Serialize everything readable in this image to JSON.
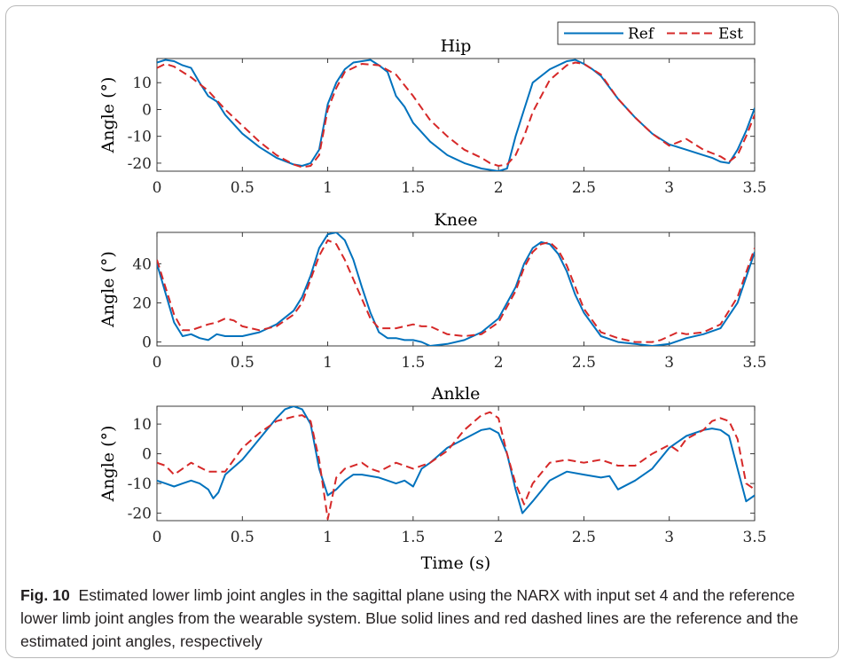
{
  "legend": [
    {
      "label": "Ref",
      "color": "#0072bd",
      "dash": "solid"
    },
    {
      "label": "Est",
      "color": "#d62828",
      "dash": "dashed"
    }
  ],
  "caption": {
    "label": "Fig. 10",
    "text": "Estimated lower limb joint angles in the sagittal plane using the NARX with input set 4 and the reference lower limb joint angles from the wearable system. Blue solid lines and red dashed lines are the reference and the estimated joint angles, respectively"
  },
  "chart_data": [
    {
      "type": "line",
      "title": "Hip",
      "xlabel": "",
      "ylabel": "Angle (°)",
      "xlim": [
        0,
        3.5
      ],
      "ylim": [
        -23,
        19
      ],
      "xticks": [
        0,
        0.5,
        1,
        1.5,
        2,
        2.5,
        3,
        3.5
      ],
      "xtick_labels": [
        "0",
        "0.5",
        "1",
        "1.5",
        "2",
        "2.5",
        "3",
        "3.5"
      ],
      "yticks": [
        -20,
        -10,
        0,
        10
      ],
      "ytick_labels": [
        "-20",
        "-10",
        "0",
        "10"
      ],
      "grid": false,
      "series": [
        {
          "name": "Ref",
          "color": "#0072bd",
          "dash": "solid",
          "x": [
            0,
            0.05,
            0.1,
            0.15,
            0.2,
            0.25,
            0.3,
            0.35,
            0.4,
            0.5,
            0.6,
            0.7,
            0.8,
            0.85,
            0.9,
            0.95,
            1.0,
            1.05,
            1.1,
            1.15,
            1.2,
            1.25,
            1.3,
            1.35,
            1.4,
            1.45,
            1.5,
            1.6,
            1.7,
            1.8,
            1.9,
            1.95,
            2.0,
            2.05,
            2.1,
            2.15,
            2.2,
            2.3,
            2.4,
            2.45,
            2.5,
            2.55,
            2.6,
            2.7,
            2.8,
            2.9,
            3.0,
            3.1,
            3.2,
            3.25,
            3.3,
            3.35,
            3.4,
            3.45,
            3.5
          ],
          "y": [
            17.5,
            18.5,
            18,
            16.5,
            15.5,
            10,
            5,
            3,
            -2,
            -9,
            -14,
            -18,
            -20.5,
            -21,
            -20,
            -15,
            2,
            10,
            15,
            17.5,
            18,
            18.5,
            16.5,
            14,
            5,
            1,
            -5,
            -12,
            -17,
            -20,
            -22,
            -22.5,
            -23,
            -22,
            -10,
            0,
            10,
            15,
            18,
            18.5,
            17,
            15,
            12.5,
            4,
            -3,
            -9,
            -13,
            -15,
            -17,
            -18,
            -19.5,
            -20,
            -15,
            -8,
            0.5
          ]
        },
        {
          "name": "Est",
          "color": "#d62828",
          "dash": "dashed",
          "x": [
            0,
            0.05,
            0.1,
            0.2,
            0.3,
            0.4,
            0.5,
            0.6,
            0.7,
            0.8,
            0.85,
            0.9,
            0.95,
            1.0,
            1.05,
            1.1,
            1.2,
            1.3,
            1.4,
            1.5,
            1.6,
            1.7,
            1.8,
            1.9,
            1.95,
            2.0,
            2.05,
            2.1,
            2.15,
            2.2,
            2.3,
            2.4,
            2.45,
            2.5,
            2.6,
            2.7,
            2.8,
            2.9,
            3.0,
            3.1,
            3.2,
            3.3,
            3.35,
            3.4,
            3.45,
            3.5
          ],
          "y": [
            15.5,
            17,
            16,
            12,
            7,
            0,
            -6,
            -12,
            -17,
            -20.5,
            -21.5,
            -21,
            -17,
            0,
            8,
            14,
            17,
            16.5,
            13,
            5,
            -4,
            -10,
            -15,
            -18,
            -20,
            -21,
            -20.5,
            -17,
            -10,
            -1,
            11,
            16.5,
            17.5,
            17,
            13,
            4,
            -3,
            -9,
            -13.5,
            -11,
            -15,
            -17.5,
            -19.5,
            -17,
            -10,
            -2
          ]
        }
      ]
    },
    {
      "type": "line",
      "title": "Knee",
      "xlabel": "",
      "ylabel": "Angle (°)",
      "xlim": [
        0,
        3.5
      ],
      "ylim": [
        -2,
        56
      ],
      "xticks": [
        0,
        0.5,
        1,
        1.5,
        2,
        2.5,
        3,
        3.5
      ],
      "xtick_labels": [
        "0",
        "0.5",
        "1",
        "1.5",
        "2",
        "2.5",
        "3",
        "3.5"
      ],
      "yticks": [
        0,
        20,
        40
      ],
      "ytick_labels": [
        "0",
        "20",
        "40"
      ],
      "grid": false,
      "series": [
        {
          "name": "Ref",
          "color": "#0072bd",
          "dash": "solid",
          "x": [
            0,
            0.05,
            0.1,
            0.15,
            0.2,
            0.25,
            0.3,
            0.35,
            0.4,
            0.5,
            0.6,
            0.7,
            0.8,
            0.85,
            0.9,
            0.95,
            1.0,
            1.05,
            1.1,
            1.15,
            1.2,
            1.25,
            1.3,
            1.35,
            1.4,
            1.45,
            1.5,
            1.55,
            1.6,
            1.7,
            1.8,
            1.9,
            2.0,
            2.1,
            2.15,
            2.2,
            2.25,
            2.3,
            2.35,
            2.4,
            2.45,
            2.5,
            2.6,
            2.7,
            2.8,
            2.9,
            3.0,
            3.1,
            3.2,
            3.3,
            3.4,
            3.5
          ],
          "y": [
            40,
            25,
            10,
            3,
            4,
            2,
            1,
            4,
            3,
            3,
            5,
            9,
            16,
            23,
            34,
            48,
            55,
            56,
            52,
            42,
            28,
            15,
            5,
            2,
            2,
            1,
            1,
            0,
            -2,
            -1,
            1,
            5,
            12,
            28,
            40,
            48,
            51,
            50,
            45,
            36,
            24,
            15,
            3,
            0,
            -1,
            -2,
            -1,
            2,
            4,
            7,
            20,
            46
          ]
        },
        {
          "name": "Est",
          "color": "#d62828",
          "dash": "dashed",
          "x": [
            0,
            0.05,
            0.1,
            0.15,
            0.2,
            0.3,
            0.35,
            0.4,
            0.45,
            0.5,
            0.6,
            0.7,
            0.8,
            0.85,
            0.9,
            0.95,
            1.0,
            1.05,
            1.1,
            1.15,
            1.2,
            1.25,
            1.3,
            1.4,
            1.5,
            1.55,
            1.6,
            1.7,
            1.8,
            1.9,
            2.0,
            2.1,
            2.15,
            2.2,
            2.25,
            2.3,
            2.35,
            2.4,
            2.45,
            2.5,
            2.6,
            2.7,
            2.8,
            2.9,
            2.95,
            3.0,
            3.05,
            3.1,
            3.2,
            3.3,
            3.4,
            3.5
          ],
          "y": [
            42,
            28,
            14,
            6,
            6,
            9,
            10,
            12,
            11,
            8,
            6,
            8,
            14,
            20,
            32,
            44,
            52,
            50,
            42,
            32,
            22,
            12,
            7,
            7,
            9,
            8,
            8,
            4,
            3,
            4,
            10,
            26,
            38,
            46,
            50,
            51,
            47,
            39,
            28,
            17,
            5,
            2,
            0,
            0,
            1,
            3,
            5,
            4,
            5,
            9,
            23,
            48
          ]
        }
      ]
    },
    {
      "type": "line",
      "title": "Ankle",
      "xlabel": "Time (s)",
      "ylabel": "Angle (°)",
      "xlim": [
        0,
        3.5
      ],
      "ylim": [
        -22.5,
        16
      ],
      "xticks": [
        0,
        0.5,
        1,
        1.5,
        2,
        2.5,
        3,
        3.5
      ],
      "xtick_labels": [
        "0",
        "0.5",
        "1",
        "1.5",
        "2",
        "2.5",
        "3",
        "3.5"
      ],
      "yticks": [
        -20,
        -10,
        0,
        10
      ],
      "ytick_labels": [
        "-20",
        "-10",
        "0",
        "10"
      ],
      "grid": false,
      "series": [
        {
          "name": "Ref",
          "color": "#0072bd",
          "dash": "solid",
          "x": [
            0,
            0.05,
            0.1,
            0.15,
            0.2,
            0.25,
            0.3,
            0.33,
            0.36,
            0.4,
            0.5,
            0.6,
            0.7,
            0.75,
            0.8,
            0.85,
            0.9,
            0.95,
            1.0,
            1.05,
            1.1,
            1.15,
            1.2,
            1.3,
            1.4,
            1.45,
            1.5,
            1.55,
            1.6,
            1.7,
            1.8,
            1.9,
            1.95,
            2.0,
            2.05,
            2.1,
            2.14,
            2.2,
            2.3,
            2.4,
            2.5,
            2.6,
            2.65,
            2.7,
            2.8,
            2.9,
            3.0,
            3.1,
            3.2,
            3.25,
            3.3,
            3.35,
            3.4,
            3.45,
            3.5
          ],
          "y": [
            -9,
            -10,
            -11,
            -10,
            -9,
            -10,
            -12,
            -15,
            -13,
            -7,
            -2,
            5,
            12,
            15,
            16,
            15,
            10,
            -5,
            -14,
            -12,
            -9,
            -7,
            -7,
            -8,
            -10,
            -9,
            -11,
            -5,
            -3,
            2,
            5,
            8,
            8.5,
            7,
            0,
            -12,
            -20,
            -16,
            -9,
            -6,
            -7,
            -8,
            -7.5,
            -12,
            -9,
            -5,
            2,
            6,
            8,
            8.5,
            8,
            6,
            -5,
            -16,
            -14
          ]
        },
        {
          "name": "Est",
          "color": "#d62828",
          "dash": "dashed",
          "x": [
            0,
            0.05,
            0.1,
            0.15,
            0.2,
            0.3,
            0.4,
            0.5,
            0.6,
            0.7,
            0.8,
            0.85,
            0.9,
            0.95,
            1.0,
            1.05,
            1.1,
            1.2,
            1.25,
            1.3,
            1.4,
            1.5,
            1.6,
            1.7,
            1.8,
            1.9,
            1.95,
            2.0,
            2.05,
            2.1,
            2.15,
            2.2,
            2.3,
            2.4,
            2.5,
            2.6,
            2.7,
            2.8,
            2.9,
            3.0,
            3.05,
            3.1,
            3.2,
            3.25,
            3.3,
            3.35,
            3.4,
            3.45,
            3.5
          ],
          "y": [
            -3,
            -4,
            -7,
            -5,
            -3,
            -6,
            -6,
            2,
            7,
            11,
            12.5,
            13,
            11,
            -2,
            -22,
            -8,
            -5,
            -3,
            -5,
            -6,
            -3,
            -5,
            -3,
            1,
            8,
            13,
            14,
            12,
            0,
            -10,
            -17,
            -10,
            -3,
            -2,
            -3,
            -2,
            -4,
            -4,
            0,
            3,
            1,
            5,
            8,
            11,
            12,
            11,
            5,
            -10,
            -12
          ]
        }
      ]
    }
  ]
}
